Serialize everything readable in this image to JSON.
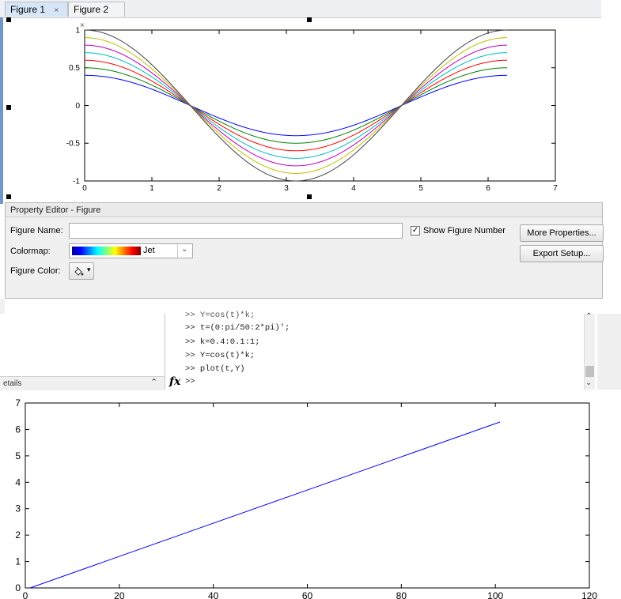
{
  "tabs": [
    {
      "label": "Figure 1",
      "close": "×"
    },
    {
      "label": "Figure 2",
      "close": "×"
    }
  ],
  "figure1": {
    "chart_data": {
      "type": "line",
      "title": "",
      "xlabel": "",
      "ylabel": "",
      "xlim": [
        0,
        7
      ],
      "ylim": [
        -1,
        1
      ],
      "xticks": [
        "0",
        "1",
        "2",
        "3",
        "4",
        "5",
        "6",
        "7"
      ],
      "yticks": [
        "-1",
        "-0.5",
        "0",
        "0.5",
        "1"
      ],
      "function": "Y = cos(t)*k, t = 0:pi/50:2*pi",
      "series": [
        {
          "k": 0.4,
          "color": "#0000ff"
        },
        {
          "k": 0.5,
          "color": "#008000"
        },
        {
          "k": 0.6,
          "color": "#ff0000"
        },
        {
          "k": 0.7,
          "color": "#00bfbf"
        },
        {
          "k": 0.8,
          "color": "#bf00bf"
        },
        {
          "k": 0.9,
          "color": "#bfbf00"
        },
        {
          "k": 1.0,
          "color": "#404040"
        }
      ]
    }
  },
  "property_editor": {
    "title": "Property Editor - Figure",
    "figure_name_label": "Figure Name:",
    "figure_name_value": "",
    "show_number_label": "Show Figure Number",
    "show_number_checked": true,
    "colormap_label": "Colormap:",
    "colormap_value": "Jet",
    "figure_color_label": "Figure Color:",
    "more_properties": "More Properties...",
    "export_setup": "Export Setup..."
  },
  "details": {
    "label": "etails"
  },
  "command_window": {
    "lines": [
      ">> Y=cos(t)*k;",
      ">> t=(0:pi/50:2*pi)';",
      ">> k=0.4:0.1:1;",
      ">> Y=cos(t)*k;",
      ">> plot(t,Y)"
    ],
    "prompt": ">>",
    "fx": "fx"
  },
  "figure2": {
    "chart_data": {
      "type": "line",
      "title": "",
      "xlabel": "",
      "ylabel": "",
      "xlim": [
        0,
        120
      ],
      "ylim": [
        0,
        7
      ],
      "xticks": [
        "0",
        "20",
        "40",
        "60",
        "80",
        "100",
        "120"
      ],
      "yticks": [
        "0",
        "1",
        "2",
        "3",
        "4",
        "5",
        "6",
        "7"
      ],
      "series": [
        {
          "color": "#0000ff",
          "x": [
            1,
            101
          ],
          "y": [
            0,
            6.283
          ]
        }
      ]
    }
  }
}
